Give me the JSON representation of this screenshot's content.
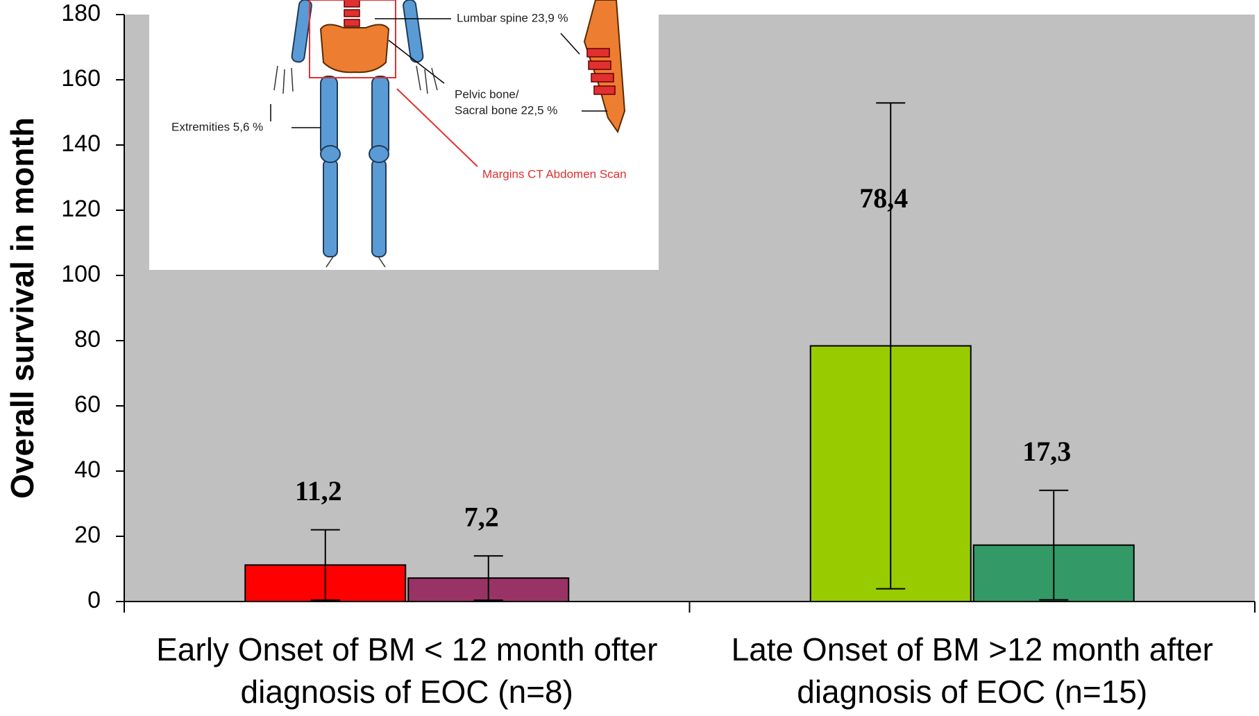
{
  "chart_data": {
    "type": "bar",
    "categories": [
      [
        "Early Onset of BM < 12 month ofter",
        "diagnosis of EOC (n=8)"
      ],
      [
        "Late Onset of BM >12 month after",
        "diagnosis of EOC (n=15)"
      ]
    ],
    "series": [
      {
        "colors": [
          "#ff0000",
          "#99cc00"
        ],
        "values": [
          11.2,
          78.4
        ],
        "errors": [
          10.8,
          74.5
        ],
        "value_labels": [
          "11,2",
          "78,4"
        ]
      },
      {
        "colors": [
          "#993366",
          "#339966"
        ],
        "values": [
          7.2,
          17.3
        ],
        "errors": [
          6.8,
          16.8
        ],
        "value_labels": [
          "7,2",
          "17,3"
        ]
      }
    ],
    "y_label": "Overall survival in month",
    "ylim": [
      0,
      180
    ],
    "yticks": [
      0,
      20,
      40,
      60,
      80,
      100,
      120,
      140,
      160,
      180
    ],
    "background": "#c0c0c0"
  },
  "inset": {
    "labels": [
      "Lumbar spine 23,9 %",
      "Pelvic bone/",
      "Sacral bone 22,5 %",
      "Extremities 5,6 %"
    ],
    "ct_label": "Margins CT Abdomen Scan"
  }
}
